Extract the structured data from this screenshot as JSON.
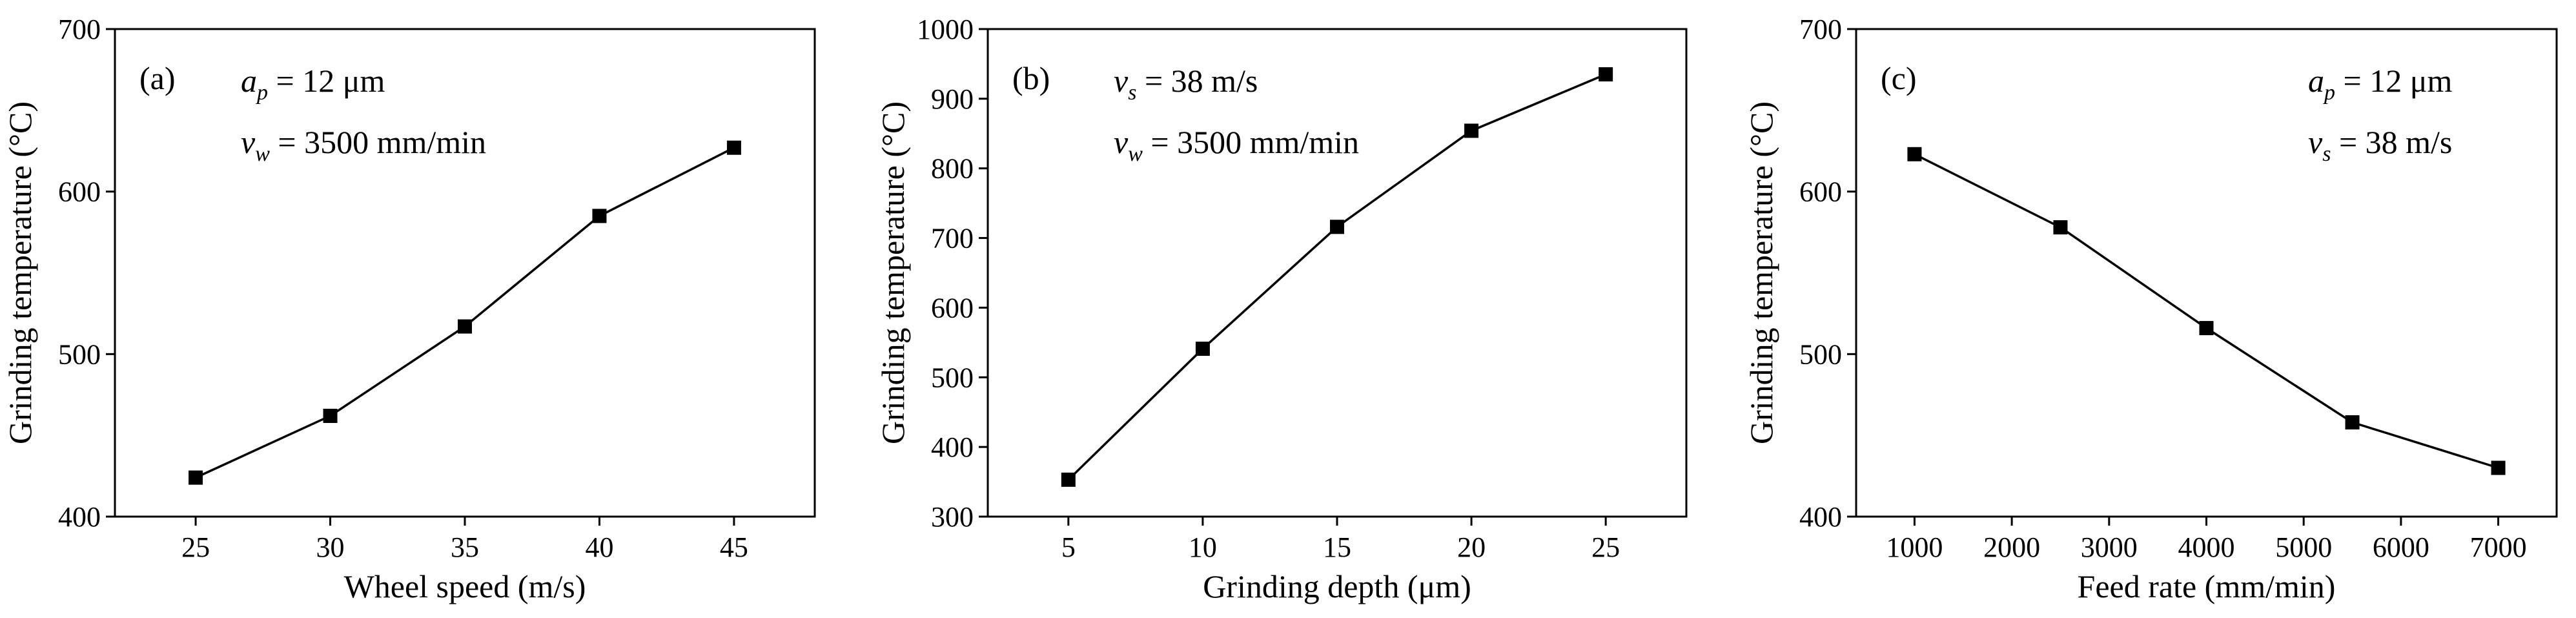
{
  "chart_data": [
    {
      "type": "line",
      "panel_label": "(a)",
      "xlabel": "Wheel speed (m/s)",
      "ylabel": "Grinding temperature (°C)",
      "x": [
        25,
        30,
        35,
        40,
        45
      ],
      "values": [
        424,
        462,
        517,
        585,
        627
      ],
      "xlim": [
        22,
        48
      ],
      "ylim": [
        400,
        700
      ],
      "xticks": [
        25,
        30,
        35,
        40,
        45
      ],
      "yticks": [
        400,
        500,
        600,
        700
      ],
      "annotations": [
        {
          "sym": "a",
          "sub": "p",
          "text": " = 12 μm"
        },
        {
          "sym": "v",
          "sub": "w",
          "text": " = 3500 mm/min"
        }
      ],
      "annotation_position": "top-left",
      "marker": "square",
      "color": "#000000"
    },
    {
      "type": "line",
      "panel_label": "(b)",
      "xlabel": "Grinding depth (μm)",
      "ylabel": "Grinding temperature (°C)",
      "x": [
        5,
        10,
        15,
        20,
        25
      ],
      "values": [
        353,
        541,
        716,
        854,
        935
      ],
      "xlim": [
        2,
        28
      ],
      "ylim": [
        300,
        1000
      ],
      "xticks": [
        5,
        10,
        15,
        20,
        25
      ],
      "yticks": [
        300,
        400,
        500,
        600,
        700,
        800,
        900,
        1000
      ],
      "annotations": [
        {
          "sym": "v",
          "sub": "s",
          "text": " = 38 m/s"
        },
        {
          "sym": "v",
          "sub": "w",
          "text": " = 3500 mm/min"
        }
      ],
      "annotation_position": "top-left",
      "marker": "square",
      "color": "#000000"
    },
    {
      "type": "line",
      "panel_label": "(c)",
      "xlabel": "Feed rate (mm/min)",
      "ylabel": "Grinding temperature (°C)",
      "x": [
        1000,
        2500,
        4000,
        5500,
        7000
      ],
      "values": [
        623,
        578,
        516,
        458,
        430
      ],
      "xlim": [
        400,
        7600
      ],
      "ylim": [
        400,
        700
      ],
      "xticks": [
        1000,
        2000,
        3000,
        4000,
        5000,
        6000,
        7000
      ],
      "yticks": [
        400,
        500,
        600,
        700
      ],
      "annotations": [
        {
          "sym": "a",
          "sub": "p",
          "text": " = 12 μm"
        },
        {
          "sym": "v",
          "sub": "s",
          "text": " = 38 m/s"
        }
      ],
      "annotation_position": "top-right",
      "marker": "square",
      "color": "#000000"
    }
  ]
}
